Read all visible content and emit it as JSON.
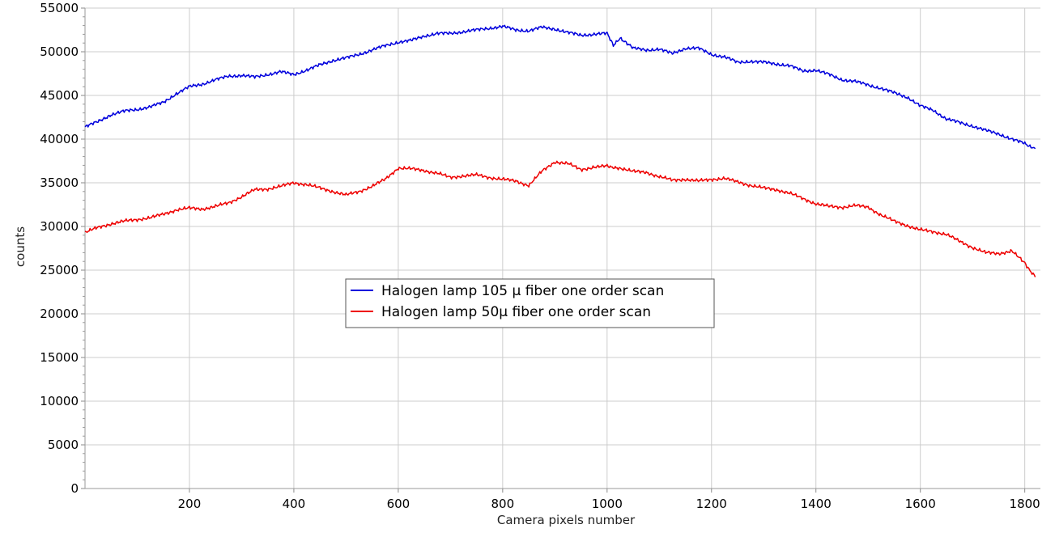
{
  "chart_data": {
    "type": "line",
    "title": "",
    "xlabel": "Camera pixels number",
    "ylabel": "counts",
    "xlim": [
      0,
      1830
    ],
    "ylim": [
      0,
      55000
    ],
    "x_ticks": [
      200,
      400,
      600,
      800,
      1000,
      1200,
      1400,
      1600,
      1800
    ],
    "y_ticks": [
      0,
      5000,
      10000,
      15000,
      20000,
      25000,
      30000,
      35000,
      40000,
      45000,
      50000,
      55000
    ],
    "grid": true,
    "legend_position": "center",
    "x": [
      0,
      25,
      50,
      75,
      100,
      125,
      150,
      175,
      200,
      225,
      250,
      275,
      300,
      325,
      350,
      375,
      400,
      425,
      450,
      475,
      500,
      525,
      550,
      575,
      600,
      625,
      650,
      675,
      700,
      725,
      750,
      775,
      800,
      825,
      850,
      875,
      900,
      925,
      950,
      975,
      1000,
      1012,
      1025,
      1050,
      1075,
      1100,
      1125,
      1150,
      1175,
      1200,
      1225,
      1250,
      1275,
      1300,
      1325,
      1350,
      1375,
      1400,
      1425,
      1450,
      1475,
      1500,
      1525,
      1550,
      1575,
      1600,
      1625,
      1650,
      1675,
      1700,
      1725,
      1750,
      1775,
      1800,
      1820
    ],
    "series": [
      {
        "name": "Halogen lamp 105 µ  fiber one order scan",
        "color": "#0000dd",
        "values": [
          41400,
          42000,
          42800,
          43200,
          43400,
          43700,
          44200,
          45200,
          46000,
          46300,
          46800,
          47200,
          47300,
          47100,
          47400,
          47700,
          47400,
          47900,
          48500,
          49000,
          49300,
          49700,
          50200,
          50700,
          51100,
          51300,
          51800,
          52100,
          52100,
          52300,
          52500,
          52700,
          52900,
          52500,
          52400,
          52800,
          52600,
          52200,
          51900,
          52000,
          52100,
          50800,
          51600,
          50400,
          50200,
          50300,
          49800,
          50400,
          50400,
          49700,
          49400,
          48800,
          48900,
          48800,
          48600,
          48400,
          47800,
          47900,
          47400,
          46800,
          46600,
          46200,
          45800,
          45300,
          44800,
          43800,
          43300,
          42300,
          41900,
          41500,
          41000,
          40600,
          40000,
          39500,
          38900
        ]
      },
      {
        "name": "Halogen lamp 50µ fiber one order scan",
        "color": "#ee0000",
        "values": [
          29300,
          29900,
          30300,
          30600,
          30800,
          31000,
          31400,
          31900,
          32100,
          32000,
          32300,
          32700,
          33400,
          34200,
          34300,
          34600,
          35000,
          34800,
          34400,
          34000,
          33600,
          34000,
          34600,
          35400,
          36700,
          36600,
          36400,
          36100,
          35600,
          35800,
          35900,
          35600,
          35400,
          35200,
          34700,
          36300,
          37400,
          37200,
          36500,
          36800,
          36900,
          36800,
          36700,
          36300,
          36200,
          35700,
          35300,
          35400,
          35200,
          35400,
          35500,
          35100,
          34700,
          34400,
          34200,
          33800,
          33200,
          32600,
          32300,
          32200,
          32400,
          32200,
          31300,
          30600,
          30100,
          29600,
          29400,
          29100,
          28300,
          27600,
          27000,
          26900,
          27200,
          25800,
          24200
        ]
      }
    ]
  }
}
